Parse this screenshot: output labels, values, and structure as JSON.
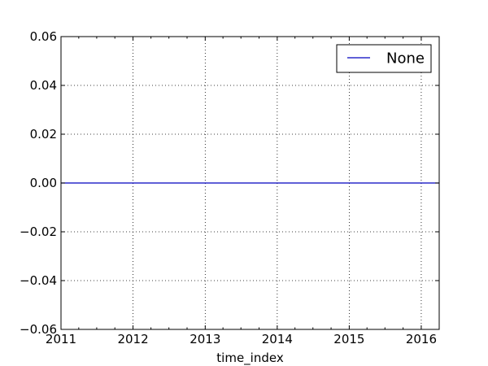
{
  "chart_data": {
    "type": "line",
    "title": "",
    "xlabel": "time_index",
    "ylabel": "",
    "x_ticks": [
      "2011",
      "2012",
      "2013",
      "2014",
      "2015",
      "2016"
    ],
    "y_ticks": [
      "0.06",
      "0.04",
      "0.02",
      "0.00",
      "−0.02",
      "−0.04",
      "−0.06"
    ],
    "xlim": [
      "2011-01-01",
      "2016-04-01"
    ],
    "ylim": [
      -0.06,
      0.06
    ],
    "grid": true,
    "grid_style": "dotted",
    "legend_position": "top-right",
    "series": [
      {
        "name": "None",
        "color": "#0000bf",
        "x": [
          "2011-01-01",
          "2016-04-01"
        ],
        "y": [
          0.0,
          0.0
        ]
      }
    ]
  }
}
